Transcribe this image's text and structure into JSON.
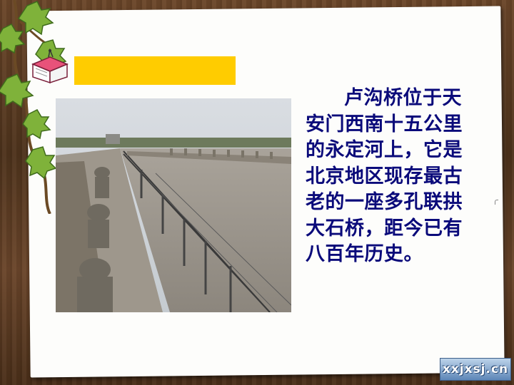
{
  "slide": {
    "paragraph": "卢沟桥位于天安门西南十五公里的永定河上，它是北京地区现存最古老的一座多孔联拱大石桥，距今已有八百年历史。",
    "watermark": "xxjxsj.cn",
    "accent_color": "#ffcc00",
    "text_color": "#0a0a7a"
  },
  "icons": [
    "book-icon",
    "ivy-vine",
    "marco-polo-bridge-photo"
  ]
}
